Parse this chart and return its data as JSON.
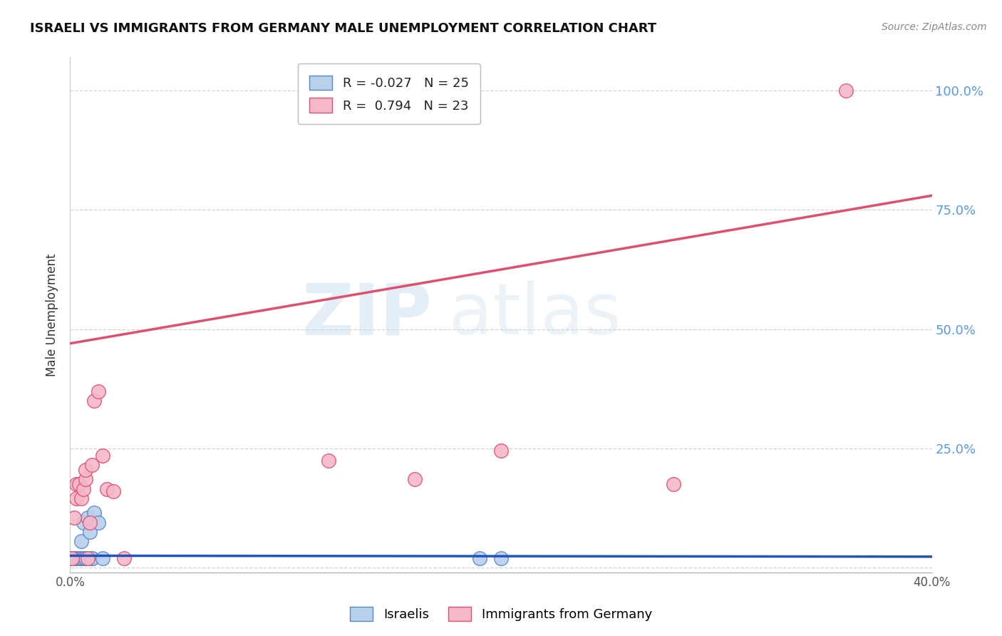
{
  "title": "ISRAELI VS IMMIGRANTS FROM GERMANY MALE UNEMPLOYMENT CORRELATION CHART",
  "source": "Source: ZipAtlas.com",
  "ylabel": "Male Unemployment",
  "xlim": [
    0.0,
    0.4
  ],
  "ylim": [
    -0.01,
    1.07
  ],
  "ytick_labels": [
    "",
    "25.0%",
    "50.0%",
    "75.0%",
    "100.0%"
  ],
  "ytick_vals": [
    0.0,
    0.25,
    0.5,
    0.75,
    1.0
  ],
  "xtick_vals": [
    0.0,
    0.05,
    0.1,
    0.15,
    0.2,
    0.25,
    0.3,
    0.35,
    0.4
  ],
  "xtick_labels": [
    "0.0%",
    "",
    "",
    "",
    "",
    "",
    "",
    "",
    "40.0%"
  ],
  "israelis_x": [
    0.001,
    0.001,
    0.002,
    0.002,
    0.002,
    0.003,
    0.003,
    0.003,
    0.004,
    0.004,
    0.005,
    0.005,
    0.006,
    0.006,
    0.007,
    0.007,
    0.008,
    0.009,
    0.01,
    0.01,
    0.011,
    0.013,
    0.015,
    0.19,
    0.2
  ],
  "israelis_y": [
    0.02,
    0.02,
    0.02,
    0.02,
    0.02,
    0.02,
    0.02,
    0.02,
    0.02,
    0.02,
    0.055,
    0.02,
    0.095,
    0.02,
    0.02,
    0.02,
    0.105,
    0.075,
    0.02,
    0.02,
    0.115,
    0.095,
    0.02,
    0.02,
    0.02
  ],
  "germany_x": [
    0.001,
    0.002,
    0.003,
    0.003,
    0.004,
    0.005,
    0.006,
    0.007,
    0.007,
    0.008,
    0.009,
    0.01,
    0.011,
    0.013,
    0.015,
    0.017,
    0.02,
    0.025,
    0.12,
    0.16,
    0.2,
    0.28,
    0.36
  ],
  "germany_y": [
    0.02,
    0.105,
    0.145,
    0.175,
    0.175,
    0.145,
    0.165,
    0.185,
    0.205,
    0.02,
    0.095,
    0.215,
    0.35,
    0.37,
    0.235,
    0.165,
    0.16,
    0.02,
    0.225,
    0.185,
    0.245,
    0.175,
    1.0
  ],
  "israeli_line_x": [
    0.0,
    0.4
  ],
  "israeli_line_y": [
    0.025,
    0.023
  ],
  "germany_line_x": [
    0.0,
    0.4
  ],
  "germany_line_y": [
    0.47,
    0.78
  ],
  "israeli_color": "#b8d0ea",
  "israel_edge_color": "#5588cc",
  "germany_color": "#f5b8c8",
  "germany_edge_color": "#e05070",
  "israeli_line_color": "#2255bb",
  "germany_line_color": "#e0506e",
  "israeli_R": "-0.027",
  "israeli_N": "25",
  "germany_R": "0.794",
  "germany_N": "23",
  "watermark_zip": "ZIP",
  "watermark_atlas": "atlas",
  "background_color": "#ffffff",
  "grid_color": "#cccccc",
  "right_axis_color": "#5599ee",
  "title_color": "#111111",
  "source_color": "#888888"
}
